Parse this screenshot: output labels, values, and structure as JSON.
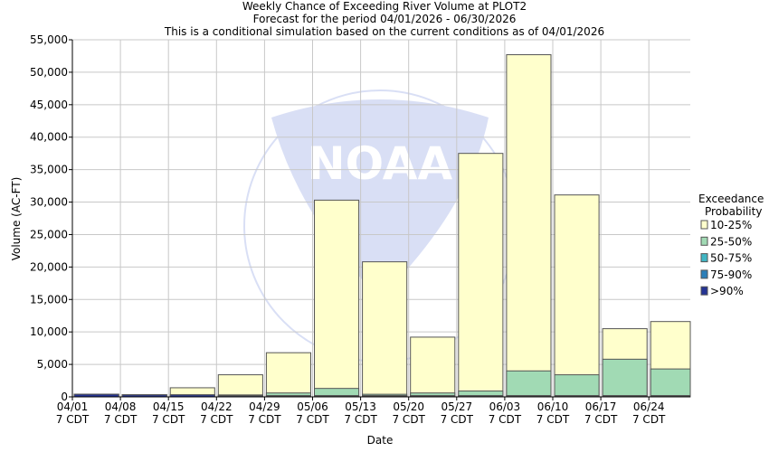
{
  "chart_data": {
    "type": "bar",
    "stacked": "overlapping exceedance levels",
    "title": "Weekly Chance of Exceeding River Volume at PLOT2",
    "subtitle": "Forecast for the period 04/01/2026 - 06/30/2026",
    "subtitle2": "This is a conditional simulation based on the current conditions as of 04/01/2026",
    "xlabel": "Date",
    "ylabel": "Volume (AC-FT)",
    "ylim": [
      0,
      55000
    ],
    "yticks": [
      "0",
      "5,000",
      "10,000",
      "15,000",
      "20,000",
      "25,000",
      "30,000",
      "35,000",
      "40,000",
      "45,000",
      "50,000",
      "55,000"
    ],
    "categories": [
      "04/01",
      "04/08",
      "04/15",
      "04/22",
      "04/29",
      "05/06",
      "05/13",
      "05/20",
      "05/27",
      "06/03",
      "06/10",
      "06/17",
      "06/24"
    ],
    "tick_sublabel": "7 CDT",
    "grid": true,
    "legend": {
      "title1": "Exceedance",
      "title2": "Probability",
      "placement": "right"
    },
    "series": [
      {
        "name": "10-25%",
        "color": "#ffffcc",
        "values": [
          400,
          300,
          1400,
          3400,
          6800,
          30300,
          20800,
          9200,
          37500,
          52700,
          31100,
          10500,
          11600
        ]
      },
      {
        "name": "25-50%",
        "color": "#a1dab4",
        "values": [
          400,
          300,
          300,
          300,
          600,
          1300,
          400,
          600,
          900,
          4000,
          3400,
          5800,
          4300
        ]
      },
      {
        "name": "50-75%",
        "color": "#41b6c4",
        "values": [
          400,
          300,
          300,
          200,
          200,
          200,
          200,
          200,
          200,
          200,
          200,
          200,
          200
        ]
      },
      {
        "name": "75-90%",
        "color": "#2c7fb8",
        "values": [
          400,
          300,
          300,
          200,
          150,
          150,
          150,
          150,
          150,
          150,
          150,
          150,
          150
        ]
      },
      {
        "name": ">90%",
        "color": "#253494",
        "values": [
          400,
          300,
          300,
          150,
          100,
          100,
          100,
          100,
          100,
          100,
          100,
          100,
          100
        ]
      }
    ]
  },
  "watermark": {
    "text": "NOAA",
    "ring": "NATIONAL OCEANIC AND ATMOSPHERIC ADMINISTRATION"
  }
}
